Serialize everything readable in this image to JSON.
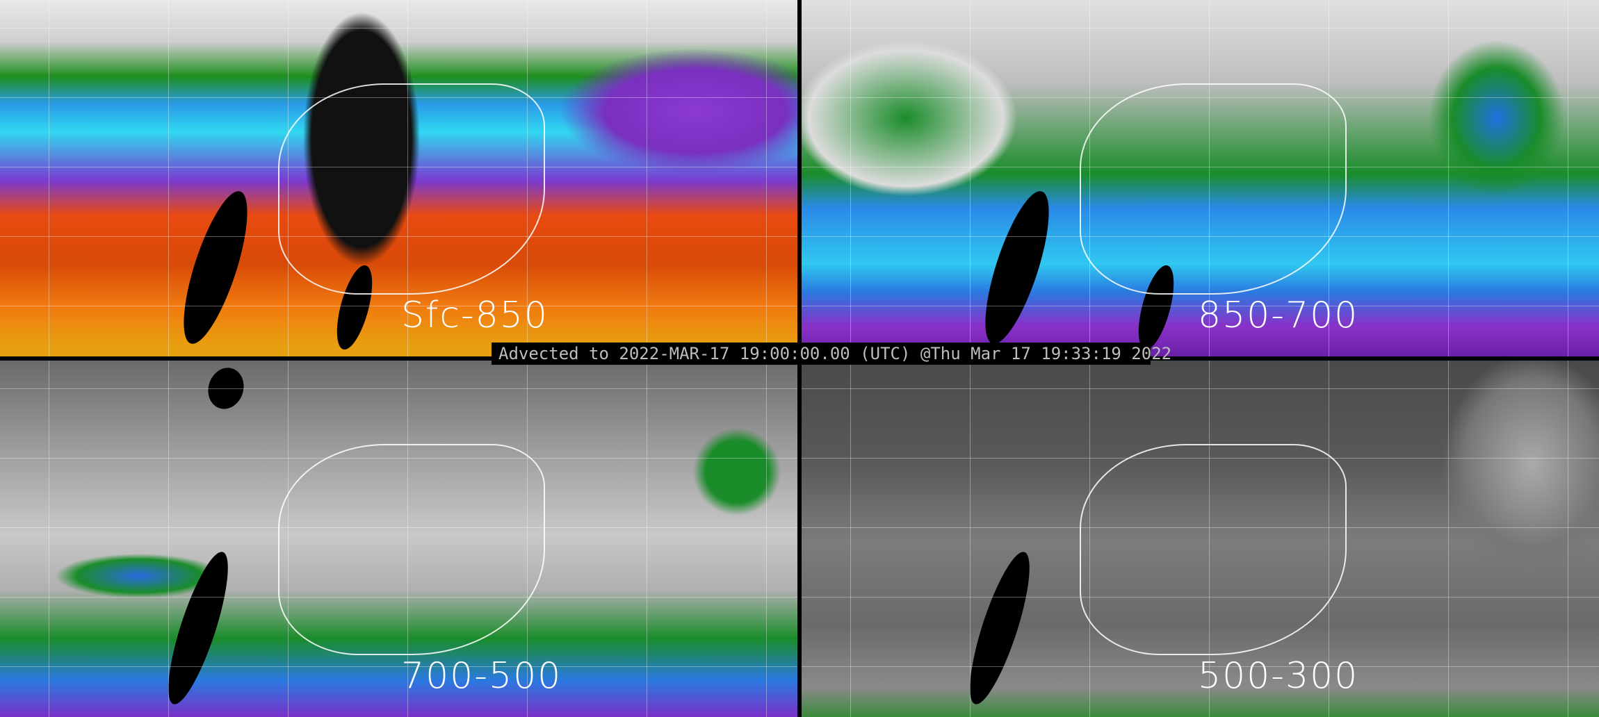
{
  "panels": [
    {
      "label": "Sfc-850"
    },
    {
      "label": "850-700"
    },
    {
      "label": "700-500"
    },
    {
      "label": "500-300"
    }
  ],
  "timestamp_bar": "Advected to 2022-MAR-17 19:00:00.00 (UTC) @Thu Mar 17 19:33:19 2022",
  "colors": {
    "background": "#000000",
    "label_text": "#ffffff",
    "timestamp_text": "#bdbdbd",
    "colormap": [
      "#4a4a4a",
      "#e0e0e0",
      "#1a8c2a",
      "#2a8ae8",
      "#30d8f0",
      "#7a3ad0",
      "#e84a10",
      "#e8a010"
    ]
  }
}
